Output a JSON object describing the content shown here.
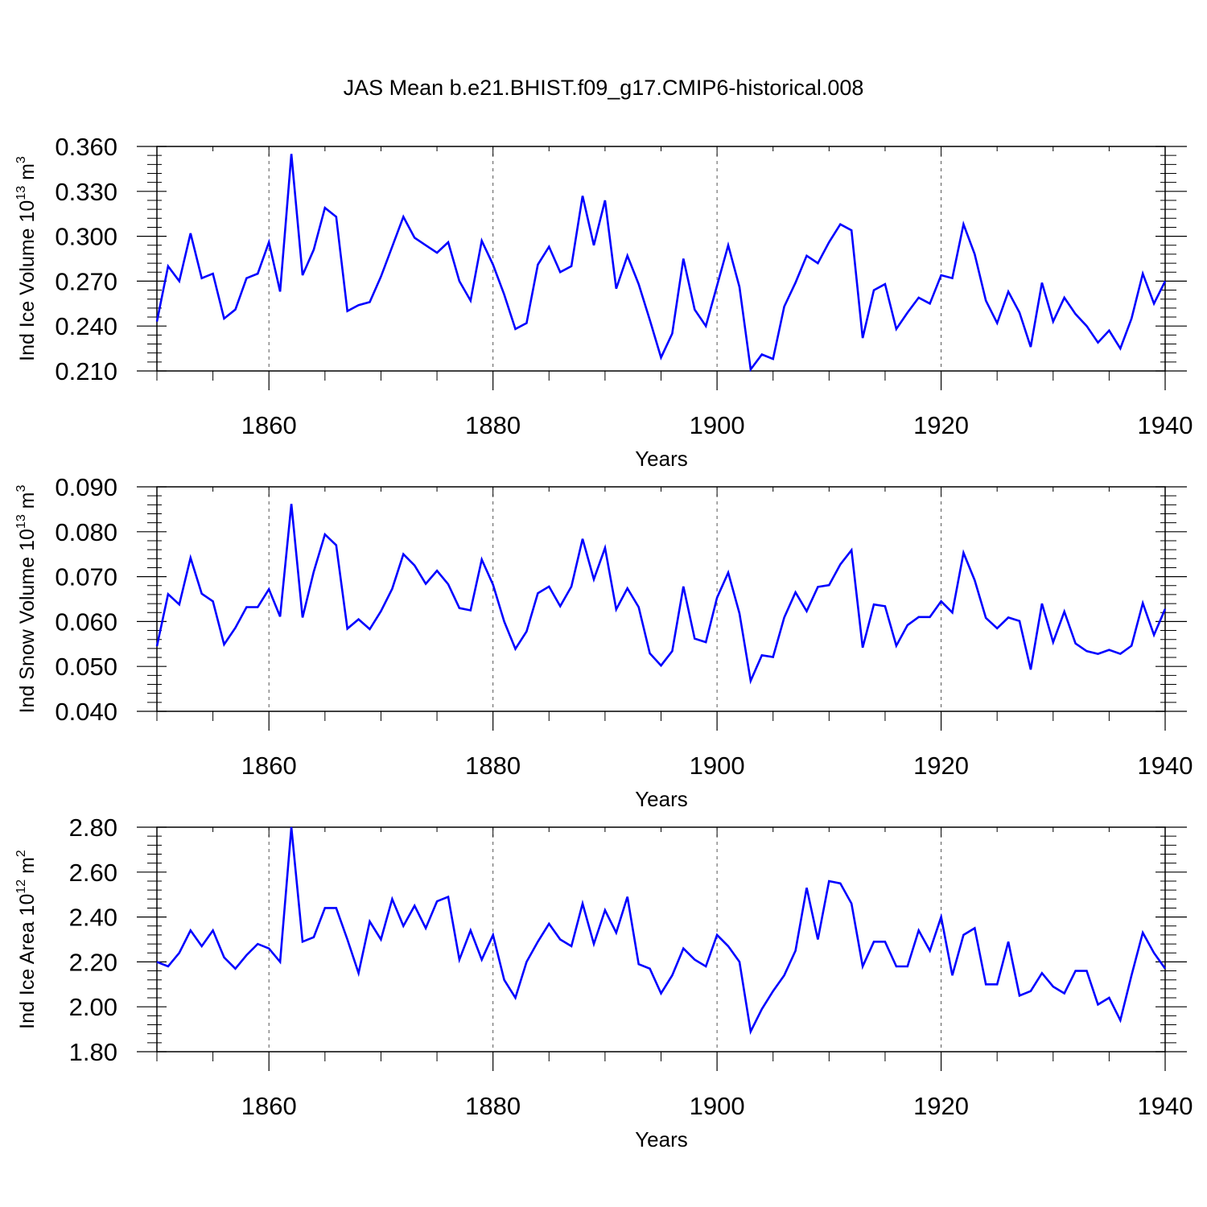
{
  "title": "JAS Mean b.e21.BHIST.f09_g17.CMIP6-historical.008",
  "colors": {
    "line": "#0000ff",
    "axis": "#000000",
    "grid": "#555555"
  },
  "chart_data": [
    {
      "type": "line",
      "ylabel": "Ind Ice Volume",
      "yunit_base": "10",
      "yunit_exp": "13",
      "yunit_tail": "m",
      "yunit_tail_exp": "3",
      "xlabel": "Years",
      "xlim": [
        1850,
        1940
      ],
      "ylim": [
        0.21,
        0.36
      ],
      "yticks": [
        "0.210",
        "0.240",
        "0.270",
        "0.300",
        "0.330",
        "0.360"
      ],
      "xticks": [
        "1860",
        "1880",
        "1900",
        "1920",
        "1940"
      ],
      "grid": "dashed vertical lines at 1860, 1880, 1900, 1920",
      "x_start": 1850,
      "values": [
        0.243,
        0.28,
        0.27,
        0.302,
        0.272,
        0.275,
        0.245,
        0.251,
        0.272,
        0.275,
        0.296,
        0.263,
        0.355,
        0.274,
        0.291,
        0.319,
        0.313,
        0.25,
        0.254,
        0.256,
        0.273,
        0.293,
        0.313,
        0.299,
        0.294,
        0.289,
        0.296,
        0.27,
        0.257,
        0.297,
        0.281,
        0.261,
        0.238,
        0.242,
        0.281,
        0.293,
        0.276,
        0.28,
        0.327,
        0.294,
        0.324,
        0.265,
        0.287,
        0.268,
        0.244,
        0.219,
        0.235,
        0.285,
        0.251,
        0.24,
        0.267,
        0.294,
        0.266,
        0.211,
        0.221,
        0.218,
        0.253,
        0.269,
        0.287,
        0.282,
        0.296,
        0.308,
        0.304,
        0.232,
        0.264,
        0.268,
        0.238,
        0.249,
        0.259,
        0.255,
        0.274,
        0.272,
        0.308,
        0.288,
        0.257,
        0.242,
        0.263,
        0.249,
        0.226,
        0.269,
        0.243,
        0.259,
        0.248,
        0.24,
        0.229,
        0.237,
        0.225,
        0.245,
        0.275,
        0.255,
        0.27
      ]
    },
    {
      "type": "line",
      "ylabel": "Ind Snow Volume",
      "yunit_base": "10",
      "yunit_exp": "13",
      "yunit_tail": "m",
      "yunit_tail_exp": "3",
      "xlabel": "Years",
      "xlim": [
        1850,
        1940
      ],
      "ylim": [
        0.04,
        0.09
      ],
      "yticks": [
        "0.040",
        "0.050",
        "0.060",
        "0.070",
        "0.080",
        "0.090"
      ],
      "xticks": [
        "1860",
        "1880",
        "1900",
        "1920",
        "1940"
      ],
      "grid": "dashed vertical lines at 1860, 1880, 1900, 1920",
      "x_start": 1850,
      "values": [
        0.0545,
        0.0661,
        0.0638,
        0.0742,
        0.0662,
        0.0645,
        0.0549,
        0.0586,
        0.0632,
        0.0632,
        0.0672,
        0.0611,
        0.0862,
        0.0609,
        0.0711,
        0.0794,
        0.077,
        0.0584,
        0.0605,
        0.0583,
        0.0623,
        0.0673,
        0.075,
        0.0725,
        0.0684,
        0.0713,
        0.0683,
        0.063,
        0.0625,
        0.0738,
        0.0682,
        0.06,
        0.0539,
        0.0578,
        0.0663,
        0.0678,
        0.0634,
        0.0678,
        0.0784,
        0.0694,
        0.0764,
        0.0627,
        0.0674,
        0.0632,
        0.0529,
        0.0502,
        0.0534,
        0.0678,
        0.0562,
        0.0554,
        0.0653,
        0.0709,
        0.0618,
        0.0468,
        0.0525,
        0.0521,
        0.0609,
        0.0665,
        0.0623,
        0.0677,
        0.0681,
        0.0727,
        0.0759,
        0.0542,
        0.0638,
        0.0634,
        0.0546,
        0.0592,
        0.061,
        0.061,
        0.0645,
        0.062,
        0.0753,
        0.0692,
        0.0608,
        0.0585,
        0.0609,
        0.0601,
        0.0493,
        0.064,
        0.0554,
        0.0622,
        0.0551,
        0.0534,
        0.0528,
        0.0537,
        0.0528,
        0.0546,
        0.0641,
        0.057,
        0.0628
      ]
    },
    {
      "type": "line",
      "ylabel": "Ind Ice Area",
      "yunit_base": "10",
      "yunit_exp": "12",
      "yunit_tail": "m",
      "yunit_tail_exp": "2",
      "xlabel": "Years",
      "xlim": [
        1850,
        1940
      ],
      "ylim": [
        1.8,
        2.8
      ],
      "yticks": [
        "1.80",
        "2.00",
        "2.20",
        "2.40",
        "2.60",
        "2.80"
      ],
      "xticks": [
        "1860",
        "1880",
        "1900",
        "1920",
        "1940"
      ],
      "grid": "dashed vertical lines at 1860, 1880, 1900, 1920",
      "x_start": 1850,
      "values": [
        2.2,
        2.18,
        2.24,
        2.34,
        2.27,
        2.34,
        2.22,
        2.17,
        2.23,
        2.28,
        2.26,
        2.2,
        2.8,
        2.29,
        2.31,
        2.44,
        2.44,
        2.3,
        2.15,
        2.38,
        2.3,
        2.48,
        2.36,
        2.45,
        2.35,
        2.47,
        2.49,
        2.21,
        2.34,
        2.21,
        2.32,
        2.12,
        2.04,
        2.2,
        2.29,
        2.37,
        2.3,
        2.27,
        2.46,
        2.28,
        2.43,
        2.33,
        2.49,
        2.19,
        2.17,
        2.06,
        2.14,
        2.26,
        2.21,
        2.18,
        2.32,
        2.27,
        2.2,
        1.89,
        1.99,
        2.07,
        2.14,
        2.25,
        2.53,
        2.3,
        2.56,
        2.55,
        2.46,
        2.18,
        2.29,
        2.29,
        2.18,
        2.18,
        2.34,
        2.25,
        2.4,
        2.14,
        2.32,
        2.35,
        2.1,
        2.1,
        2.29,
        2.05,
        2.07,
        2.15,
        2.09,
        2.06,
        2.16,
        2.16,
        2.01,
        2.04,
        1.94,
        2.14,
        2.33,
        2.24,
        2.17
      ]
    }
  ]
}
